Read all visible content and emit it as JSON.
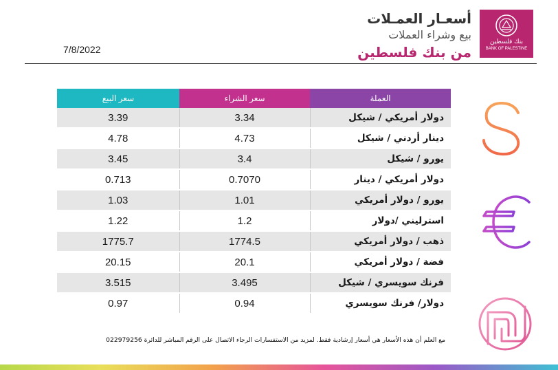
{
  "header": {
    "date": "7/8/2022",
    "title_line1": "أسعـار العمـلات",
    "title_line2": "بيع وشراء العملات",
    "title_line3": "من بنك فلسطين",
    "logo_text_ar": "بنك فلسطين",
    "logo_text_en": "BANK OF PALESTINE"
  },
  "table": {
    "headers": {
      "sell": "سعر البيع",
      "buy": "سعر الشراء",
      "currency": "العملة"
    },
    "rows": [
      {
        "currency": "دولار أمريكي / شيكل",
        "buy": "3.34",
        "sell": "3.39"
      },
      {
        "currency": "دينار أردني / شيكل",
        "buy": "4.73",
        "sell": "4.78"
      },
      {
        "currency": "يورو /  شيكل",
        "buy": "3.4",
        "sell": "3.45"
      },
      {
        "currency": "دولار أمريكي / دينار",
        "buy": "0.7070",
        "sell": "0.713"
      },
      {
        "currency": "يورو / دولار أمريكي",
        "buy": "1.01",
        "sell": "1.03"
      },
      {
        "currency": "استرليني /دولار",
        "buy": "1.2",
        "sell": "1.22"
      },
      {
        "currency": "ذهب / دولار أمريكي",
        "buy": "1774.5",
        "sell": "1775.7"
      },
      {
        "currency": "فضة / دولار أمريكي",
        "buy": "20.1",
        "sell": "20.15"
      },
      {
        "currency": "فرنك سويسري / شيكل",
        "buy": "3.495",
        "sell": "3.515"
      },
      {
        "currency": "دولار/ فرنك سويسري",
        "buy": "0.94",
        "sell": "0.97"
      }
    ]
  },
  "footer": {
    "note": "مع العلم أن هذه الأسعار هي أسعار إرشادية فقط. لمزيد من الاستفسارات الرجاء الاتصال على الرقم المباشر للدائرة 022979256"
  },
  "icons": [
    "dollar-icon",
    "euro-icon",
    "shekel-icon"
  ],
  "colors": {
    "brand": "#b8266f",
    "sell_header": "#1db8c1",
    "buy_header": "#c2318e",
    "currency_header": "#8a45a6"
  }
}
